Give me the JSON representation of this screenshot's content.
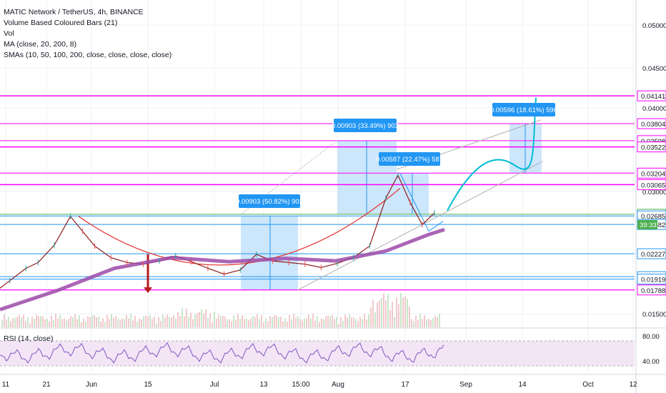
{
  "legend": {
    "title": "MATIC Network / TetherUS, 4h, BINANCE",
    "indicators": [
      "Volume Based Coloured Bars (21)",
      "Vol",
      "MA (close, 20, 200, 8)",
      "SMAs (10, 50, 100, 200, close, close, close, close)"
    ],
    "rsi": "RSI (14, close)"
  },
  "colors": {
    "magenta": "#ff00ff",
    "green_line": "#4caf50",
    "blue_line": "#2196f3",
    "measure_fill": "#bbdefb",
    "measure_label_bg": "#2196f3",
    "ma_purple": "#9c4aa8",
    "arc_red": "#e53935",
    "forecast_cyan": "#00bcd4",
    "rsi_line": "#7e57c2",
    "rsi_band": "#f3e5f5"
  },
  "chart_data": {
    "type": "line",
    "title": "MATIC Network / TetherUS, 4h, BINANCE",
    "x_axis_labels": [
      "11",
      "21",
      "Jun",
      "15",
      "Jul",
      "13",
      "15:00",
      "Aug",
      "17",
      "Sep",
      "14",
      "Oct",
      "12"
    ],
    "y_axis_labels": [
      "0.05000",
      "0.04500",
      "0.04000",
      "0.03000",
      "0.01500"
    ],
    "ylim": [
      0.0145,
      0.0532
    ],
    "price_levels": [
      {
        "value": "0.04141",
        "color": "#ff00ff"
      },
      {
        "value": "0.03804",
        "color": "#ff00ff"
      },
      {
        "value": "0.03598",
        "color": "#ff00ff"
      },
      {
        "value": "0.03522",
        "color": "#ff00ff"
      },
      {
        "value": "0.03204",
        "color": "#ff00ff"
      },
      {
        "value": "0.03065",
        "color": "#ff00ff"
      },
      {
        "value": "0.02705",
        "color": "#4caf50"
      },
      {
        "value": "0.02685",
        "color": "#2196f3"
      },
      {
        "value": "0.02582",
        "color": "#2196f3"
      },
      {
        "value": "0.02227",
        "color": "#2196f3"
      },
      {
        "value": "0.01949",
        "color": "#2196f3"
      },
      {
        "value": "0.01919",
        "color": "#2196f3"
      },
      {
        "value": "0.01788",
        "color": "#ff00ff"
      }
    ],
    "current_time_tag": "39:33",
    "measurements": [
      {
        "label": "0.00903 (50.82%) 903"
      },
      {
        "label": "0.00903 (33.49%) 903"
      },
      {
        "label": "0.00587 (22.47%) 587"
      },
      {
        "label": "0.00596 (18.61%) 596"
      }
    ],
    "price_series": [
      {
        "x": "May 4",
        "y": 0.0168
      },
      {
        "x": "May 8",
        "y": 0.0175
      },
      {
        "x": "May 12",
        "y": 0.019
      },
      {
        "x": "May 16",
        "y": 0.0205
      },
      {
        "x": "May 19",
        "y": 0.0212
      },
      {
        "x": "May 23",
        "y": 0.0233
      },
      {
        "x": "May 27",
        "y": 0.0268
      },
      {
        "x": "May 30",
        "y": 0.025
      },
      {
        "x": "Jun 2",
        "y": 0.0232
      },
      {
        "x": "Jun 6",
        "y": 0.0218
      },
      {
        "x": "Jun 10",
        "y": 0.0212
      },
      {
        "x": "Jun 14",
        "y": 0.021
      },
      {
        "x": "Jun 18",
        "y": 0.0214
      },
      {
        "x": "Jun 22",
        "y": 0.022
      },
      {
        "x": "Jun 26",
        "y": 0.0213
      },
      {
        "x": "Jun 30",
        "y": 0.0205
      },
      {
        "x": "Jul 4",
        "y": 0.0198
      },
      {
        "x": "Jul 8",
        "y": 0.0203
      },
      {
        "x": "Jul 12",
        "y": 0.0222
      },
      {
        "x": "Jul 16",
        "y": 0.0214
      },
      {
        "x": "Jul 20",
        "y": 0.0212
      },
      {
        "x": "Jul 24",
        "y": 0.021
      },
      {
        "x": "Jul 28",
        "y": 0.0206
      },
      {
        "x": "Aug 1",
        "y": 0.0211
      },
      {
        "x": "Aug 5",
        "y": 0.0218
      },
      {
        "x": "Aug 9",
        "y": 0.0232
      },
      {
        "x": "Aug 13",
        "y": 0.029
      },
      {
        "x": "Aug 16",
        "y": 0.0318
      },
      {
        "x": "Aug 19",
        "y": 0.0285
      },
      {
        "x": "Aug 22",
        "y": 0.0258
      },
      {
        "x": "Aug 25",
        "y": 0.0272
      }
    ],
    "rsi_axis_labels": [
      "80.00",
      "40.00"
    ]
  }
}
